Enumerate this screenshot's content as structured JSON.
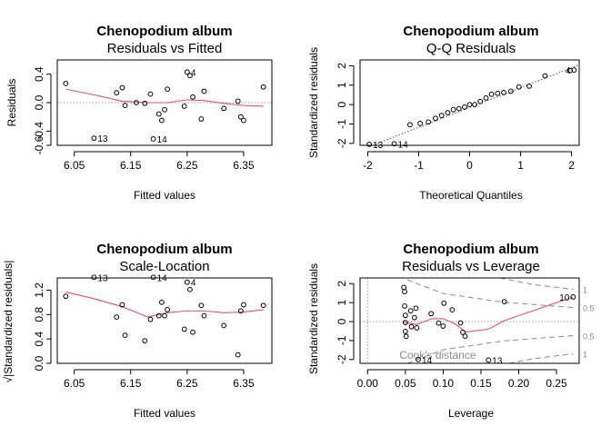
{
  "figure": {
    "colors": {
      "frame": "#000000",
      "smoother": "#DF536B",
      "reference": "#9E9E9E",
      "points": "#000000"
    }
  },
  "chart_data": [
    {
      "type": "scatter",
      "title": "Chenopodium album",
      "subtitle": "Residuals vs Fitted",
      "xlabel": "Fitted values",
      "ylabel": "Residuals",
      "xlim": [
        6.02,
        6.4
      ],
      "ylim": [
        -0.6,
        0.6
      ],
      "xticks": [
        6.05,
        6.15,
        6.25,
        6.35
      ],
      "xtick_labels": [
        "6.05",
        "6.15",
        "6.25",
        "6.35"
      ],
      "yticks": [
        -0.6,
        -0.4,
        0.0,
        0.4
      ],
      "ytick_labels": [
        "-0.6",
        "-0.4",
        "0.0",
        "0.4"
      ],
      "reference_lines": [
        {
          "orientation": "h",
          "value": 0,
          "style": "dotted"
        }
      ],
      "points": [
        {
          "x": 6.035,
          "y": 0.27
        },
        {
          "x": 6.085,
          "y": -0.5
        },
        {
          "x": 6.125,
          "y": 0.14
        },
        {
          "x": 6.135,
          "y": 0.21
        },
        {
          "x": 6.14,
          "y": -0.04
        },
        {
          "x": 6.16,
          "y": 0.0
        },
        {
          "x": 6.175,
          "y": -0.01
        },
        {
          "x": 6.185,
          "y": 0.12
        },
        {
          "x": 6.19,
          "y": -0.51
        },
        {
          "x": 6.2,
          "y": -0.16
        },
        {
          "x": 6.205,
          "y": -0.25
        },
        {
          "x": 6.21,
          "y": -0.1
        },
        {
          "x": 6.215,
          "y": 0.19
        },
        {
          "x": 6.245,
          "y": -0.05
        },
        {
          "x": 6.25,
          "y": 0.43
        },
        {
          "x": 6.255,
          "y": 0.38
        },
        {
          "x": 6.26,
          "y": 0.08
        },
        {
          "x": 6.275,
          "y": -0.23
        },
        {
          "x": 6.28,
          "y": 0.16
        },
        {
          "x": 6.315,
          "y": -0.08
        },
        {
          "x": 6.34,
          "y": 0.02
        },
        {
          "x": 6.345,
          "y": -0.2
        },
        {
          "x": 6.35,
          "y": -0.25
        },
        {
          "x": 6.385,
          "y": 0.22
        }
      ],
      "smoother": [
        {
          "x": 6.035,
          "y": 0.19
        },
        {
          "x": 6.085,
          "y": 0.11
        },
        {
          "x": 6.135,
          "y": 0.02
        },
        {
          "x": 6.185,
          "y": 0.0
        },
        {
          "x": 6.215,
          "y": 0.0
        },
        {
          "x": 6.25,
          "y": 0.04
        },
        {
          "x": 6.28,
          "y": 0.03
        },
        {
          "x": 6.315,
          "y": -0.01
        },
        {
          "x": 6.35,
          "y": -0.04
        },
        {
          "x": 6.385,
          "y": -0.05
        }
      ],
      "annotations": [
        {
          "text": "4",
          "x": 6.25,
          "y": 0.43
        },
        {
          "text": "13",
          "x": 6.085,
          "y": -0.5
        },
        {
          "text": "14",
          "x": 6.19,
          "y": -0.51
        }
      ]
    },
    {
      "type": "scatter",
      "title": "Chenopodium album",
      "subtitle": "Q-Q Residuals",
      "xlabel": "Theoretical Quantiles",
      "ylabel": "Standardized residuals",
      "xlim": [
        -2.15,
        2.15
      ],
      "ylim": [
        -2.1,
        2.3
      ],
      "xticks": [
        -2,
        -1,
        0,
        1,
        2
      ],
      "xtick_labels": [
        "-2",
        "-1",
        "0",
        "1",
        "2"
      ],
      "yticks": [
        -2,
        -1,
        0,
        1,
        2
      ],
      "ytick_labels": [
        "-2",
        "-1",
        "0",
        "1",
        "2"
      ],
      "reference_lines": [
        {
          "orientation": "diag",
          "from": [
            -2.15,
            -2.35
          ],
          "to": [
            2.15,
            2.05
          ],
          "style": "dotted"
        }
      ],
      "points": [
        {
          "x": -1.97,
          "y": -2.05
        },
        {
          "x": -1.48,
          "y": -2.02
        },
        {
          "x": -1.17,
          "y": -1.04
        },
        {
          "x": -0.97,
          "y": -0.97
        },
        {
          "x": -0.81,
          "y": -0.9
        },
        {
          "x": -0.67,
          "y": -0.71
        },
        {
          "x": -0.55,
          "y": -0.56
        },
        {
          "x": -0.43,
          "y": -0.42
        },
        {
          "x": -0.32,
          "y": -0.26
        },
        {
          "x": -0.21,
          "y": -0.21
        },
        {
          "x": -0.1,
          "y": -0.13
        },
        {
          "x": 0.0,
          "y": 0.0
        },
        {
          "x": 0.1,
          "y": 0.0
        },
        {
          "x": 0.21,
          "y": 0.16
        },
        {
          "x": 0.32,
          "y": 0.34
        },
        {
          "x": 0.43,
          "y": 0.53
        },
        {
          "x": 0.55,
          "y": 0.58
        },
        {
          "x": 0.67,
          "y": 0.62
        },
        {
          "x": 0.81,
          "y": 0.69
        },
        {
          "x": 0.97,
          "y": 0.91
        },
        {
          "x": 1.17,
          "y": 0.95
        },
        {
          "x": 1.48,
          "y": 1.48
        },
        {
          "x": 1.97,
          "y": 1.75
        },
        {
          "x": 2.05,
          "y": 1.78
        }
      ],
      "annotations": [
        {
          "text": "4",
          "x": 2.05,
          "y": 1.78
        },
        {
          "text": "13",
          "x": -1.97,
          "y": -2.05
        },
        {
          "text": "14",
          "x": -1.48,
          "y": -2.02
        }
      ]
    },
    {
      "type": "scatter",
      "title": "Chenopodium album",
      "subtitle": "Scale-Location",
      "xlabel": "Fitted values",
      "ylabel": "√|Standardized residuals|",
      "xlim": [
        6.02,
        6.4
      ],
      "ylim": [
        0.0,
        1.4
      ],
      "xticks": [
        6.05,
        6.15,
        6.25,
        6.35
      ],
      "xtick_labels": [
        "6.05",
        "6.15",
        "6.25",
        "6.35"
      ],
      "yticks": [
        0.0,
        0.4,
        0.8,
        1.2
      ],
      "ytick_labels": [
        "0.0",
        "0.4",
        "0.8",
        "1.2"
      ],
      "points": [
        {
          "x": 6.035,
          "y": 1.1
        },
        {
          "x": 6.085,
          "y": 1.41
        },
        {
          "x": 6.125,
          "y": 0.76
        },
        {
          "x": 6.135,
          "y": 0.96
        },
        {
          "x": 6.14,
          "y": 0.46
        },
        {
          "x": 6.175,
          "y": 0.37
        },
        {
          "x": 6.185,
          "y": 0.72
        },
        {
          "x": 6.19,
          "y": 1.41
        },
        {
          "x": 6.2,
          "y": 0.78
        },
        {
          "x": 6.205,
          "y": 1.0
        },
        {
          "x": 6.21,
          "y": 0.78
        },
        {
          "x": 6.215,
          "y": 0.88
        },
        {
          "x": 6.245,
          "y": 0.56
        },
        {
          "x": 6.25,
          "y": 1.33
        },
        {
          "x": 6.255,
          "y": 1.21
        },
        {
          "x": 6.26,
          "y": 0.51
        },
        {
          "x": 6.275,
          "y": 0.95
        },
        {
          "x": 6.28,
          "y": 0.78
        },
        {
          "x": 6.315,
          "y": 0.62
        },
        {
          "x": 6.34,
          "y": 0.14
        },
        {
          "x": 6.345,
          "y": 0.86
        },
        {
          "x": 6.35,
          "y": 0.96
        },
        {
          "x": 6.385,
          "y": 0.95
        }
      ],
      "smoother": [
        {
          "x": 6.035,
          "y": 1.17
        },
        {
          "x": 6.085,
          "y": 1.06
        },
        {
          "x": 6.135,
          "y": 0.93
        },
        {
          "x": 6.18,
          "y": 0.76
        },
        {
          "x": 6.215,
          "y": 0.83
        },
        {
          "x": 6.25,
          "y": 0.86
        },
        {
          "x": 6.28,
          "y": 0.86
        },
        {
          "x": 6.315,
          "y": 0.83
        },
        {
          "x": 6.35,
          "y": 0.84
        },
        {
          "x": 6.385,
          "y": 0.88
        }
      ],
      "annotations": [
        {
          "text": "13",
          "x": 6.085,
          "y": 1.41
        },
        {
          "text": "14",
          "x": 6.19,
          "y": 1.41
        },
        {
          "text": "4",
          "x": 6.25,
          "y": 1.33
        }
      ]
    },
    {
      "type": "scatter",
      "title": "Chenopodium album",
      "subtitle": "Residuals vs Leverage",
      "xlabel": "Leverage",
      "ylabel": "Standardized residuals",
      "xlim": [
        -0.01,
        0.28
      ],
      "ylim": [
        -2.2,
        2.3
      ],
      "xticks": [
        0.0,
        0.05,
        0.1,
        0.15,
        0.2,
        0.25
      ],
      "xtick_labels": [
        "0.00",
        "0.05",
        "0.10",
        "0.15",
        "0.20",
        "0.25"
      ],
      "yticks": [
        -2,
        -1,
        0,
        1,
        2
      ],
      "ytick_labels": [
        "-2",
        "-1",
        "0",
        "1",
        "2"
      ],
      "reference_lines": [
        {
          "orientation": "h",
          "value": 0,
          "style": "dotted"
        },
        {
          "orientation": "v",
          "value": 0,
          "style": "dotted"
        }
      ],
      "points": [
        {
          "x": 0.048,
          "y": 1.8
        },
        {
          "x": 0.049,
          "y": 1.58
        },
        {
          "x": 0.049,
          "y": 0.82
        },
        {
          "x": 0.05,
          "y": 0.33
        },
        {
          "x": 0.05,
          "y": -0.05
        },
        {
          "x": 0.05,
          "y": -0.52
        },
        {
          "x": 0.051,
          "y": -0.78
        },
        {
          "x": 0.057,
          "y": 0.57
        },
        {
          "x": 0.058,
          "y": -0.27
        },
        {
          "x": 0.062,
          "y": 0.21
        },
        {
          "x": 0.064,
          "y": 0.71
        },
        {
          "x": 0.065,
          "y": -0.33
        },
        {
          "x": 0.067,
          "y": -2.0
        },
        {
          "x": 0.084,
          "y": 0.42
        },
        {
          "x": 0.094,
          "y": -0.08
        },
        {
          "x": 0.1,
          "y": -0.24
        },
        {
          "x": 0.101,
          "y": 0.97
        },
        {
          "x": 0.112,
          "y": 0.62
        },
        {
          "x": 0.123,
          "y": -0.07
        },
        {
          "x": 0.126,
          "y": -0.57
        },
        {
          "x": 0.129,
          "y": -0.77
        },
        {
          "x": 0.16,
          "y": -2.03
        },
        {
          "x": 0.181,
          "y": 1.05
        },
        {
          "x": 0.272,
          "y": 1.3
        }
      ],
      "smoother": [
        {
          "x": 0.048,
          "y": -0.05
        },
        {
          "x": 0.065,
          "y": -0.15
        },
        {
          "x": 0.085,
          "y": 0.15
        },
        {
          "x": 0.1,
          "y": 0.15
        },
        {
          "x": 0.115,
          "y": -0.1
        },
        {
          "x": 0.13,
          "y": -0.55
        },
        {
          "x": 0.16,
          "y": -0.4
        },
        {
          "x": 0.181,
          "y": 0.05
        },
        {
          "x": 0.272,
          "y": 1.3
        }
      ],
      "cooks_distance": {
        "label": "Cook's distance",
        "levels": [
          "1",
          "0.5"
        ],
        "curves": [
          {
            "level": "0.5",
            "sign": 1,
            "points": [
              [
                0.03,
                2.55
              ],
              [
                0.1,
                1.48
              ],
              [
                0.18,
                1.02
              ],
              [
                0.272,
                0.74
              ]
            ]
          },
          {
            "level": "0.5",
            "sign": -1,
            "points": [
              [
                0.03,
                -2.55
              ],
              [
                0.1,
                -1.48
              ],
              [
                0.18,
                -1.02
              ],
              [
                0.272,
                -0.74
              ]
            ]
          },
          {
            "level": "1",
            "sign": 1,
            "points": [
              [
                0.175,
                2.3
              ],
              [
                0.22,
                1.95
              ],
              [
                0.272,
                1.7
              ]
            ]
          },
          {
            "level": "1",
            "sign": -1,
            "points": [
              [
                0.175,
                -2.3
              ],
              [
                0.22,
                -1.95
              ],
              [
                0.272,
                -1.7
              ]
            ]
          }
        ]
      },
      "annotations": [
        {
          "text": "10",
          "x": 0.272,
          "y": 1.3
        },
        {
          "text": "14",
          "x": 0.067,
          "y": -2.0
        },
        {
          "text": "13",
          "x": 0.16,
          "y": -2.03
        }
      ]
    }
  ]
}
